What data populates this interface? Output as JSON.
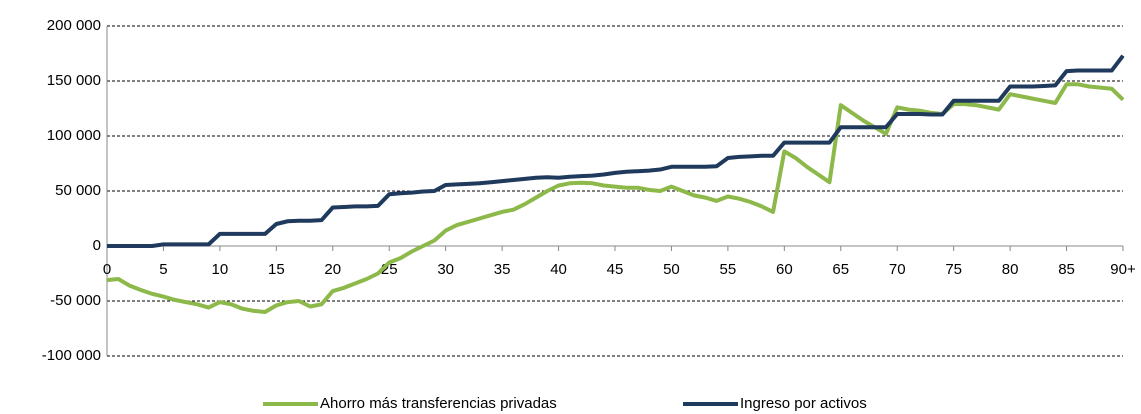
{
  "chart_data": {
    "type": "line",
    "categories": [
      "0",
      null,
      null,
      null,
      null,
      "5",
      null,
      null,
      null,
      null,
      "10",
      null,
      null,
      null,
      null,
      "15",
      null,
      null,
      null,
      null,
      "20",
      null,
      null,
      null,
      null,
      "25",
      null,
      null,
      null,
      null,
      "30",
      null,
      null,
      null,
      null,
      "35",
      null,
      null,
      null,
      null,
      "40",
      null,
      null,
      null,
      null,
      "45",
      null,
      null,
      null,
      null,
      "50",
      null,
      null,
      null,
      null,
      "55",
      null,
      null,
      null,
      null,
      "60",
      null,
      null,
      null,
      null,
      "65",
      null,
      null,
      null,
      null,
      "70",
      null,
      null,
      null,
      null,
      "75",
      null,
      null,
      null,
      null,
      "80",
      null,
      null,
      null,
      null,
      "85",
      null,
      null,
      null,
      null,
      "90+"
    ],
    "series": [
      {
        "name": "Ahorro más transferencias privadas",
        "color": "#8db84a",
        "values": [
          -31000,
          -30000,
          -36000,
          -40000,
          -43500,
          -46000,
          -49000,
          -51000,
          -53000,
          -56000,
          -51000,
          -53000,
          -57000,
          -59000,
          -60000,
          -54000,
          -51000,
          -50000,
          -55000,
          -53000,
          -41000,
          -38000,
          -34000,
          -30000,
          -25000,
          -15000,
          -11000,
          -5000,
          0,
          5000,
          14000,
          19000,
          22000,
          25000,
          28000,
          31000,
          33000,
          38000,
          44000,
          50000,
          55000,
          57000,
          57500,
          57000,
          55000,
          54000,
          53000,
          53000,
          51000,
          50000,
          54000,
          50000,
          46000,
          44000,
          41000,
          45000,
          43000,
          40000,
          36000,
          31000,
          86000,
          80000,
          72000,
          65000,
          58000,
          128000,
          121000,
          114000,
          108000,
          102000,
          126000,
          124000,
          123000,
          121000,
          120000,
          129000,
          129000,
          128000,
          126000,
          124000,
          138000,
          136000,
          134000,
          132000,
          130000,
          147000,
          147000,
          145000,
          144000,
          143000,
          133000
        ]
      },
      {
        "name": "Ingreso por activos",
        "color": "#1f3a5c",
        "values": [
          0,
          0,
          0,
          0,
          0,
          1500,
          1500,
          1500,
          1500,
          1500,
          11000,
          11000,
          11000,
          11000,
          11000,
          20000,
          22500,
          23000,
          23000,
          23500,
          35000,
          35500,
          36000,
          36000,
          36500,
          47000,
          48000,
          48500,
          49500,
          50000,
          55500,
          56000,
          56500,
          57000,
          58000,
          59000,
          60000,
          61000,
          62000,
          62500,
          62000,
          63000,
          63500,
          64000,
          65000,
          66500,
          67500,
          68000,
          68500,
          69500,
          72000,
          72000,
          72000,
          72000,
          72500,
          80000,
          81000,
          81500,
          82000,
          82000,
          94000,
          94000,
          94000,
          94000,
          94000,
          108000,
          108000,
          108000,
          108000,
          108000,
          120000,
          120000,
          120000,
          119500,
          119500,
          132000,
          132000,
          132000,
          132000,
          132000,
          145000,
          145000,
          145000,
          145500,
          146000,
          159000,
          159500,
          159500,
          159500,
          159500,
          173000
        ]
      }
    ],
    "ylim": [
      -100000,
      200000
    ],
    "yticks": [
      {
        "value": -100000,
        "label": "-100 000"
      },
      {
        "value": -50000,
        "label": "-50 000"
      },
      0,
      {
        "value": 50000,
        "label": "50 000"
      },
      {
        "value": 100000,
        "label": "100 000"
      },
      {
        "value": 150000,
        "label": "150 000"
      },
      {
        "value": 200000,
        "label": "200 000"
      }
    ],
    "grid": true,
    "legend": "bottom"
  }
}
